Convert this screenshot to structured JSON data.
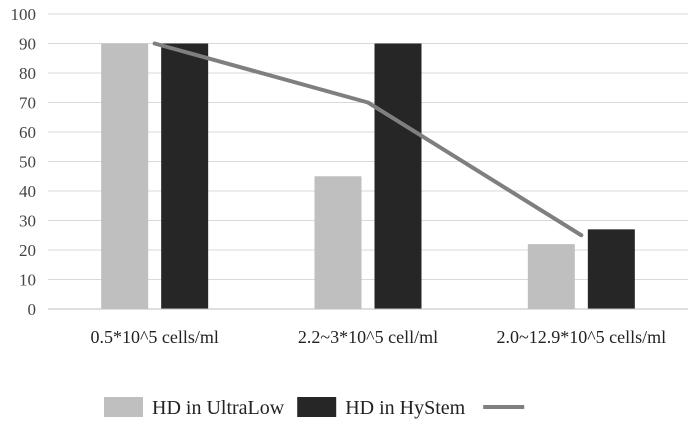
{
  "chart_data": {
    "type": "bar",
    "title": "",
    "xlabel": "",
    "ylabel": "",
    "ylim": [
      0,
      100
    ],
    "yticks": [
      0,
      10,
      20,
      30,
      40,
      50,
      60,
      70,
      80,
      90,
      100
    ],
    "grid": true,
    "legend_position": "bottom",
    "categories": [
      "0.5*10^5 cells/ml",
      "2.2~3*10^5 cell/ml",
      "2.0~12.9*10^5 cells/ml"
    ],
    "series": [
      {
        "name": "HD in UltraLow",
        "kind": "bar",
        "color": "#bfbfbf",
        "values": [
          90,
          45,
          22
        ]
      },
      {
        "name": "HD in HyStem",
        "kind": "bar",
        "color": "#262626",
        "values": [
          90,
          90,
          27
        ]
      },
      {
        "name": "",
        "kind": "line",
        "color": "#7f7f7f",
        "values": [
          90,
          70,
          25
        ]
      }
    ]
  }
}
